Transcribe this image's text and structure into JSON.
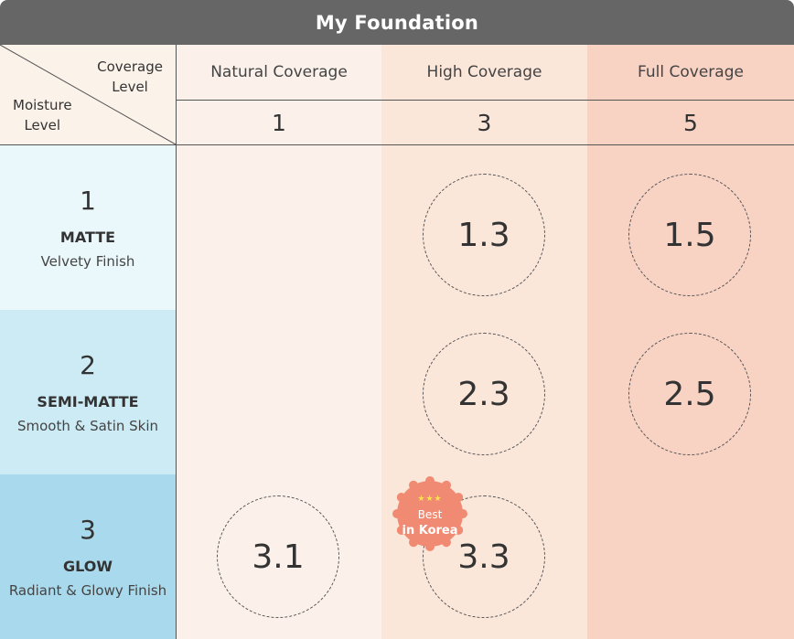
{
  "title": "My Foundation",
  "corner": {
    "coverage_line1": "Coverage",
    "coverage_line2": "Level",
    "moisture_line1": "Moisture",
    "moisture_line2": "Level"
  },
  "columns": [
    {
      "label": "Natural Coverage",
      "number": "1"
    },
    {
      "label": "High Coverage",
      "number": "3"
    },
    {
      "label": "Full Coverage",
      "number": "5"
    }
  ],
  "rows": [
    {
      "number": "1",
      "name": "MATTE",
      "desc": "Velvety Finish"
    },
    {
      "number": "2",
      "name": "SEMI-MATTE",
      "desc": "Smooth & Satin Skin"
    },
    {
      "number": "3",
      "name": "GLOW",
      "desc": "Radiant & Glowy Finish"
    }
  ],
  "cells": {
    "r1_high": "1.3",
    "r1_full": "1.5",
    "r2_high": "2.3",
    "r2_full": "2.5",
    "r3_natural": "3.1",
    "r3_high": "3.3"
  },
  "badge": {
    "stars": "★★★",
    "line1": "Best",
    "line2": "in Korea"
  },
  "colors": {
    "title_bar": "#666666",
    "corner_bg": "#fbf2ea",
    "natural_bg": "#fbf1ea",
    "high_bg": "#fbe6da",
    "full_bg": "#f8d2c3",
    "row1_bg": "#eaf8fc",
    "row2_bg": "#ccebf5",
    "row3_bg": "#a9d9ec",
    "badge": "#f08a72"
  }
}
